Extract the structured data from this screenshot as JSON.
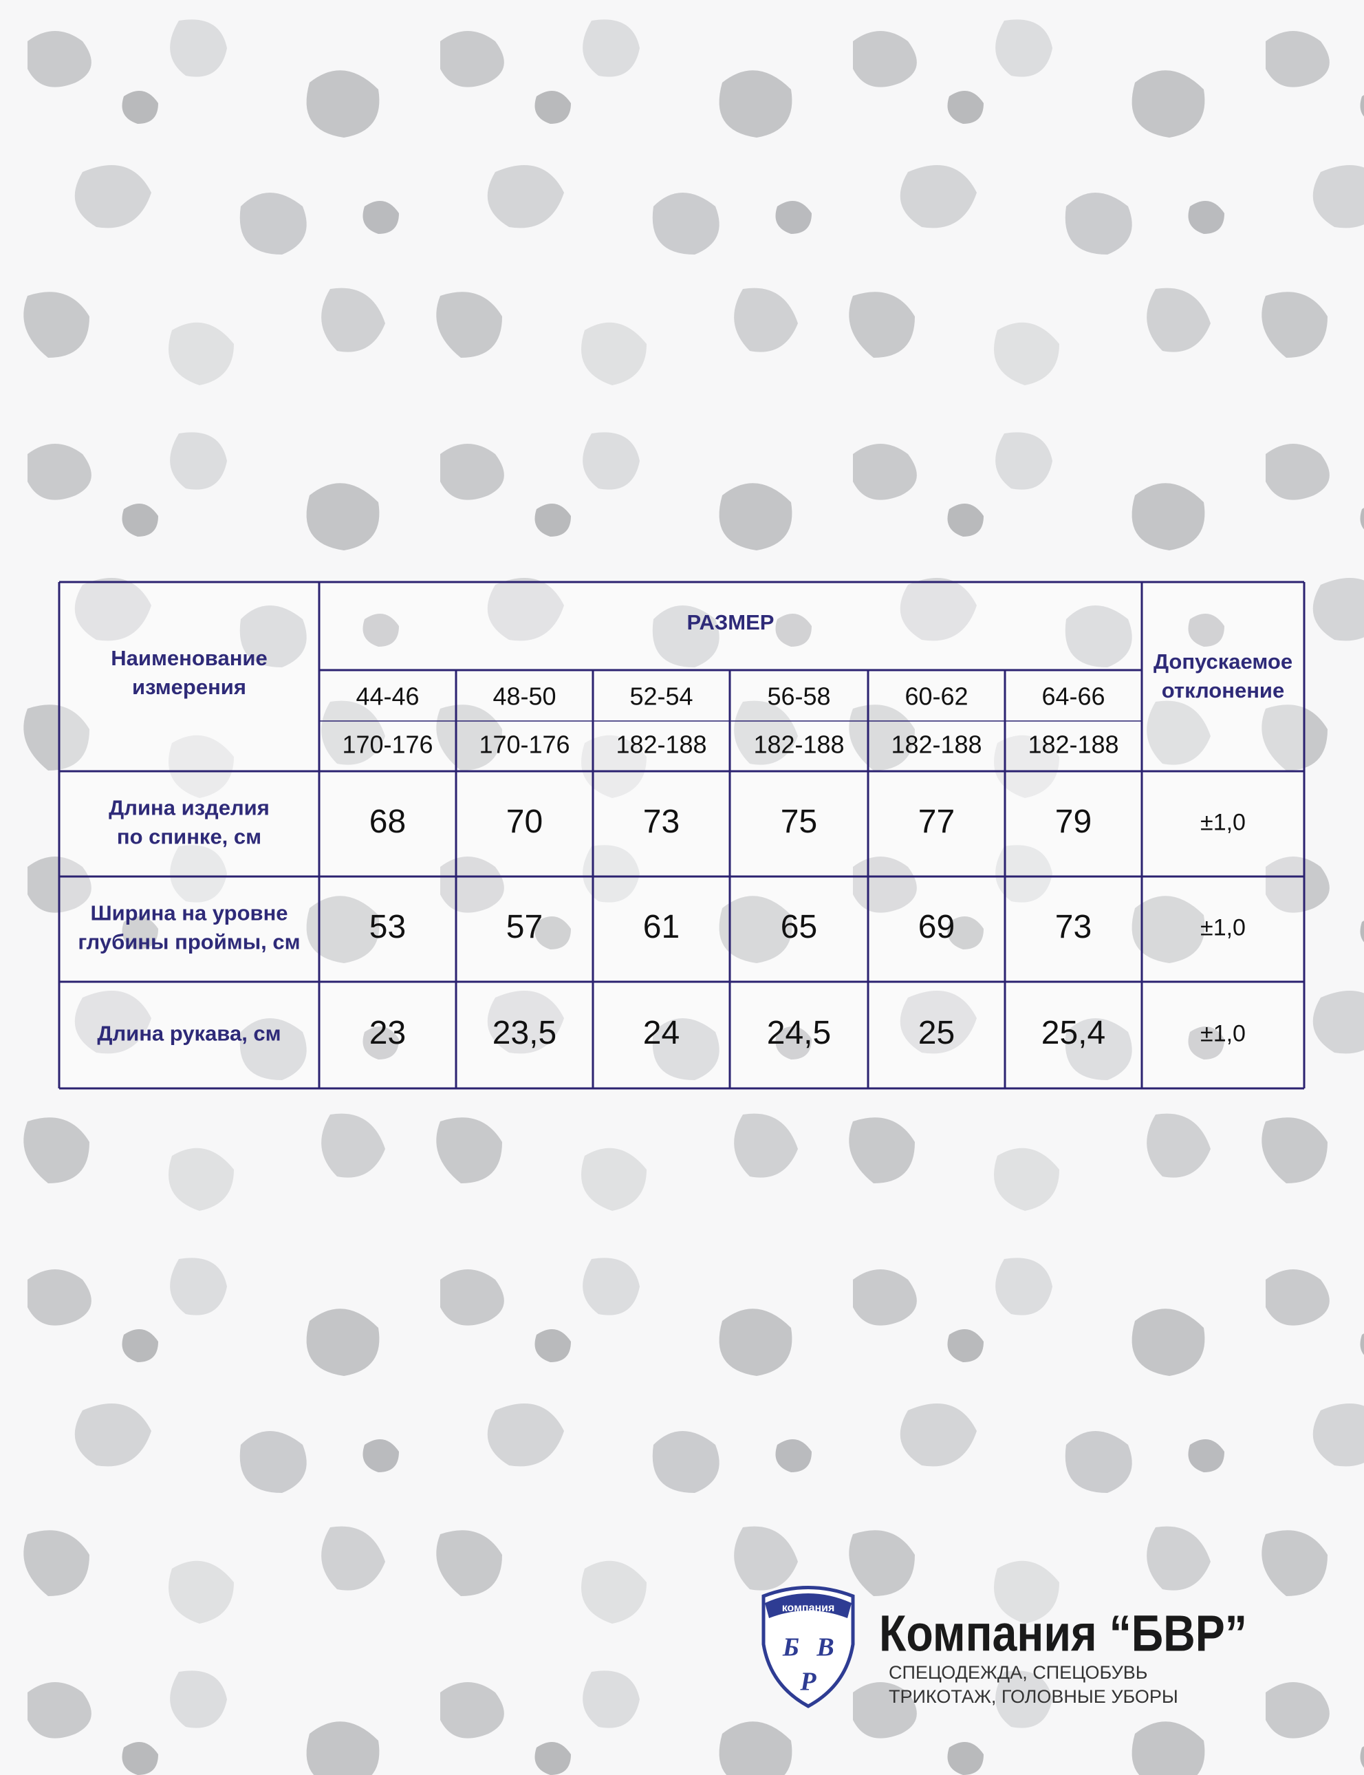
{
  "table": {
    "header": {
      "name": [
        "Наименование",
        "измерения"
      ],
      "size": "РАЗМЕР",
      "tolerance": [
        "Допускаемое",
        "отклонение"
      ]
    },
    "sizes": [
      "44-46",
      "48-50",
      "52-54",
      "56-58",
      "60-62",
      "64-66"
    ],
    "heights": [
      "170-176",
      "170-176",
      "182-188",
      "182-188",
      "182-188",
      "182-188"
    ],
    "rows": [
      {
        "label": [
          "Длина изделия",
          "по спинке, см"
        ],
        "values": [
          "68",
          "70",
          "73",
          "75",
          "77",
          "79"
        ],
        "tolerance": "±1,0"
      },
      {
        "label": [
          "Ширина на уровне",
          "глубины проймы, см"
        ],
        "values": [
          "53",
          "57",
          "61",
          "65",
          "69",
          "73"
        ],
        "tolerance": "±1,0"
      },
      {
        "label": [
          "Длина рукава, см"
        ],
        "values": [
          "23",
          "23,5",
          "24",
          "24,5",
          "25",
          "25,4"
        ],
        "tolerance": "±1,0"
      }
    ]
  },
  "footer": {
    "badge": "компания",
    "monogram": [
      "Б",
      "В",
      "Р"
    ],
    "company": "Компания “БВР”",
    "tagline": [
      "СПЕЦОДЕЖДА, СПЕЦОБУВЬ",
      "ТРИКОТАЖ, ГОЛОВНЫЕ УБОРЫ"
    ]
  }
}
